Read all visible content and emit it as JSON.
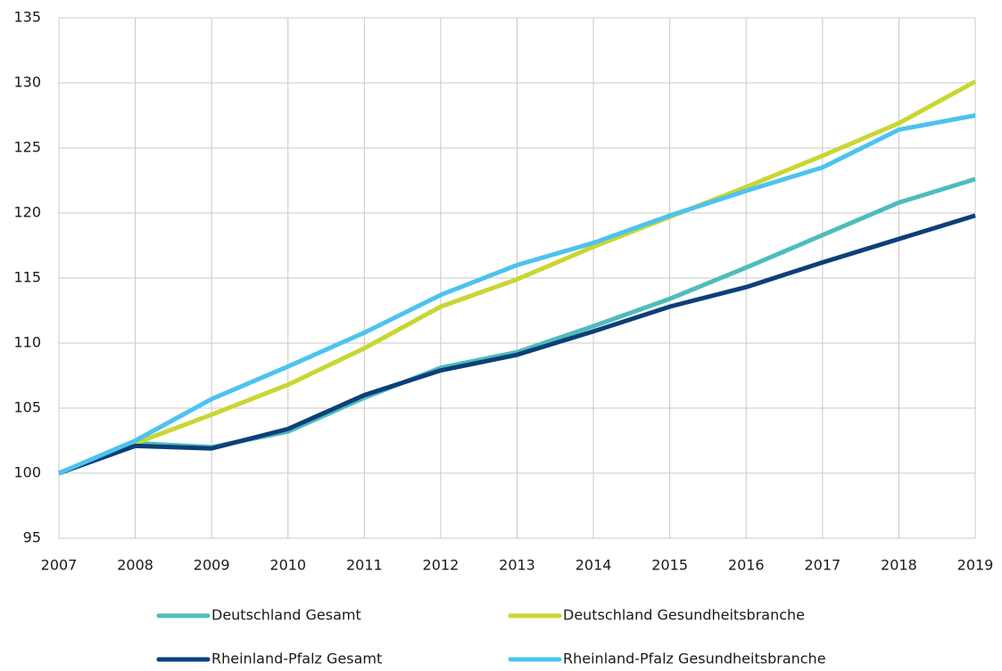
{
  "chart_data": {
    "type": "line",
    "x": [
      2007,
      2008,
      2009,
      2010,
      2011,
      2012,
      2013,
      2014,
      2015,
      2016,
      2017,
      2018,
      2019
    ],
    "xlim": [
      2007,
      2019
    ],
    "xticks": [
      2007,
      2008,
      2009,
      2010,
      2011,
      2012,
      2013,
      2014,
      2015,
      2016,
      2017,
      2018,
      2019
    ],
    "ylim": [
      95,
      135
    ],
    "yticks": [
      95,
      100,
      105,
      110,
      115,
      120,
      125,
      130,
      135
    ],
    "grid": true,
    "legend": "bottom",
    "series": [
      {
        "name": "Deutschland Gesamt",
        "color": "#4fbcbc",
        "values": [
          100,
          102.3,
          102.0,
          103.2,
          105.8,
          108.1,
          109.3,
          111.3,
          113.4,
          115.8,
          118.3,
          120.8,
          122.6
        ]
      },
      {
        "name": "Deutschland Gesundheitsbranche",
        "color": "#c9d631",
        "values": [
          100,
          102.3,
          104.5,
          106.8,
          109.6,
          112.8,
          114.9,
          117.4,
          119.7,
          122.0,
          124.4,
          126.9,
          130.1
        ]
      },
      {
        "name": "Rheinland-Pfalz Gesamt",
        "color": "#0d3f78",
        "values": [
          100,
          102.1,
          101.9,
          103.4,
          106.0,
          107.9,
          109.1,
          110.9,
          112.8,
          114.3,
          116.2,
          118.0,
          119.8
        ]
      },
      {
        "name": "Rheinland-Pfalz Gesundheitsbranche",
        "color": "#4cc3ee",
        "values": [
          100,
          102.5,
          105.7,
          108.2,
          110.8,
          113.7,
          116.0,
          117.7,
          119.8,
          121.7,
          123.5,
          126.4,
          127.5
        ]
      }
    ]
  }
}
